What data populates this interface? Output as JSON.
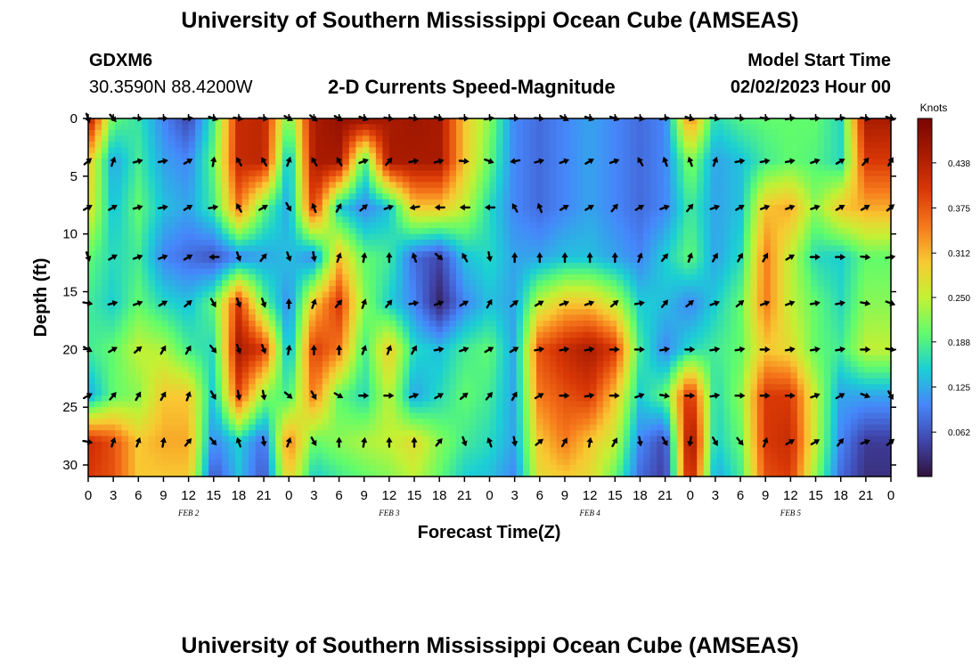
{
  "header": {
    "title": "University of Southern Mississippi Ocean Cube (AMSEAS)",
    "station_id": "GDXM6",
    "station_coords": "30.3590N  88.4200W",
    "plot_title": "2-D Currents Speed-Magnitude",
    "model_start_label": "Model Start Time",
    "model_start_value": "02/02/2023 Hour 00"
  },
  "footer": {
    "title": "University of Southern Mississippi Ocean Cube (AMSEAS)"
  },
  "chart_data": {
    "type": "heatmap",
    "title": "2-D Currents Speed-Magnitude",
    "xlabel": "Forecast Time(Z)",
    "ylabel": "Depth (ft)",
    "x_hours_range": [
      0,
      96
    ],
    "ylim": [
      0,
      31
    ],
    "x_ticks": [
      "0",
      "3",
      "6",
      "9",
      "12",
      "15",
      "18",
      "21",
      "0",
      "3",
      "6",
      "9",
      "12",
      "15",
      "18",
      "21",
      "0",
      "3",
      "6",
      "9",
      "12",
      "15",
      "18",
      "21",
      "0",
      "3",
      "6",
      "9",
      "12",
      "15",
      "18",
      "21",
      "0"
    ],
    "y_ticks": [
      0,
      5,
      10,
      15,
      20,
      25,
      30
    ],
    "y_tick_labels": [
      "0",
      "5",
      "10",
      "15",
      "20",
      "25",
      "30"
    ],
    "date_labels": [
      {
        "text": "FEB 2",
        "hour": 12
      },
      {
        "text": "FEB 3",
        "hour": 36
      },
      {
        "text": "FEB 4",
        "hour": 60
      },
      {
        "text": "FEB 5",
        "hour": 84
      }
    ],
    "colorbar": {
      "label": "Knots",
      "min": 0.0,
      "max": 0.5,
      "ticks": [
        0.062,
        0.125,
        0.188,
        0.25,
        0.312,
        0.375,
        0.438
      ],
      "tick_labels": [
        "0.062",
        "0.125",
        "0.188",
        "0.250",
        "0.312",
        "0.375",
        "0.438"
      ]
    },
    "arrow_hours": [
      0,
      3,
      6,
      9,
      12,
      15,
      18,
      21,
      24,
      27,
      30,
      33,
      36,
      39,
      42,
      45,
      48,
      51,
      54,
      57,
      60,
      63,
      66,
      69,
      72,
      75,
      78,
      81,
      84,
      87,
      90,
      93,
      96
    ],
    "arrow_depths": [
      0,
      3.7,
      7.7,
      12,
      16,
      20,
      24,
      28
    ],
    "speed_knots": {
      "hours": [
        0,
        3,
        6,
        9,
        12,
        15,
        18,
        21,
        24,
        27,
        30,
        33,
        36,
        39,
        42,
        45,
        48,
        51,
        54,
        57,
        60,
        63,
        66,
        69,
        72,
        75,
        78,
        81,
        84,
        87,
        90,
        93,
        96
      ],
      "depths": [
        0,
        3.7,
        7.7,
        12,
        16,
        20,
        24,
        28,
        31
      ],
      "rows": [
        [
          0.45,
          0.2,
          0.17,
          0.1,
          0.05,
          0.18,
          0.42,
          0.43,
          0.2,
          0.45,
          0.47,
          0.47,
          0.45,
          0.46,
          0.45,
          0.3,
          0.22,
          0.1,
          0.08,
          0.1,
          0.12,
          0.1,
          0.08,
          0.1,
          0.35,
          0.16,
          0.19,
          0.2,
          0.2,
          0.2,
          0.16,
          0.45,
          0.45
        ],
        [
          0.3,
          0.12,
          0.18,
          0.12,
          0.1,
          0.2,
          0.42,
          0.43,
          0.12,
          0.45,
          0.45,
          0.18,
          0.45,
          0.45,
          0.45,
          0.3,
          0.2,
          0.1,
          0.08,
          0.1,
          0.12,
          0.1,
          0.08,
          0.1,
          0.22,
          0.12,
          0.14,
          0.18,
          0.2,
          0.19,
          0.16,
          0.4,
          0.4
        ],
        [
          0.28,
          0.14,
          0.2,
          0.14,
          0.12,
          0.18,
          0.35,
          0.2,
          0.12,
          0.4,
          0.15,
          0.1,
          0.14,
          0.3,
          0.3,
          0.25,
          0.16,
          0.1,
          0.08,
          0.1,
          0.12,
          0.1,
          0.08,
          0.1,
          0.18,
          0.12,
          0.14,
          0.3,
          0.32,
          0.22,
          0.3,
          0.32,
          0.32
        ],
        [
          0.2,
          0.16,
          0.18,
          0.1,
          0.08,
          0.06,
          0.1,
          0.12,
          0.14,
          0.1,
          0.3,
          0.2,
          0.18,
          0.08,
          0.05,
          0.14,
          0.16,
          0.12,
          0.12,
          0.14,
          0.14,
          0.12,
          0.1,
          0.15,
          0.2,
          0.12,
          0.16,
          0.35,
          0.25,
          0.16,
          0.15,
          0.2,
          0.2
        ],
        [
          0.18,
          0.15,
          0.2,
          0.16,
          0.14,
          0.2,
          0.4,
          0.2,
          0.1,
          0.3,
          0.4,
          0.22,
          0.15,
          0.1,
          0.02,
          0.1,
          0.14,
          0.12,
          0.25,
          0.3,
          0.3,
          0.25,
          0.15,
          0.14,
          0.1,
          0.15,
          0.2,
          0.35,
          0.25,
          0.2,
          0.16,
          0.22,
          0.22
        ],
        [
          0.18,
          0.2,
          0.25,
          0.24,
          0.18,
          0.16,
          0.45,
          0.4,
          0.12,
          0.4,
          0.35,
          0.18,
          0.3,
          0.16,
          0.14,
          0.18,
          0.2,
          0.12,
          0.38,
          0.42,
          0.45,
          0.4,
          0.18,
          0.1,
          0.16,
          0.18,
          0.2,
          0.3,
          0.28,
          0.2,
          0.18,
          0.25,
          0.25
        ],
        [
          0.12,
          0.2,
          0.22,
          0.3,
          0.3,
          0.14,
          0.38,
          0.22,
          0.18,
          0.35,
          0.2,
          0.16,
          0.25,
          0.12,
          0.16,
          0.2,
          0.18,
          0.12,
          0.35,
          0.38,
          0.4,
          0.3,
          0.15,
          0.2,
          0.42,
          0.16,
          0.22,
          0.4,
          0.4,
          0.25,
          0.12,
          0.12,
          0.12
        ],
        [
          0.42,
          0.38,
          0.3,
          0.32,
          0.32,
          0.1,
          0.15,
          0.08,
          0.35,
          0.2,
          0.22,
          0.24,
          0.25,
          0.28,
          0.22,
          0.18,
          0.16,
          0.12,
          0.3,
          0.35,
          0.3,
          0.25,
          0.1,
          0.05,
          0.48,
          0.15,
          0.2,
          0.4,
          0.42,
          0.25,
          0.1,
          0.04,
          0.04
        ],
        [
          0.4,
          0.38,
          0.3,
          0.3,
          0.3,
          0.06,
          0.14,
          0.06,
          0.3,
          0.15,
          0.18,
          0.2,
          0.22,
          0.25,
          0.2,
          0.15,
          0.14,
          0.1,
          0.28,
          0.3,
          0.28,
          0.2,
          0.08,
          0.04,
          0.45,
          0.12,
          0.18,
          0.38,
          0.4,
          0.22,
          0.08,
          0.03,
          0.03
        ]
      ]
    },
    "direction_deg": {
      "rows": [
        [
          160,
          140,
          95,
          90,
          80,
          110,
          100,
          95,
          120,
          130,
          120,
          110,
          100,
          100,
          110,
          90,
          80,
          90,
          95,
          120,
          110,
          110,
          100,
          80,
          110,
          100,
          95,
          100,
          80,
          85,
          75,
          100,
          110
        ],
        [
          50,
          20,
          75,
          80,
          60,
          10,
          330,
          330,
          20,
          330,
          330,
          70,
          40,
          80,
          75,
          95,
          110,
          260,
          75,
          70,
          60,
          70,
          330,
          340,
          340,
          20,
          80,
          80,
          80,
          70,
          60,
          40,
          30
        ],
        [
          60,
          60,
          75,
          80,
          60,
          80,
          330,
          60,
          150,
          340,
          30,
          50,
          70,
          260,
          270,
          270,
          270,
          330,
          340,
          60,
          60,
          40,
          60,
          70,
          40,
          70,
          60,
          70,
          70,
          70,
          60,
          60,
          50
        ],
        [
          160,
          60,
          70,
          70,
          60,
          270,
          160,
          40,
          160,
          170,
          20,
          10,
          0,
          340,
          130,
          330,
          170,
          0,
          0,
          0,
          0,
          0,
          20,
          40,
          20,
          30,
          30,
          30,
          60,
          90,
          90,
          95,
          80
        ],
        [
          100,
          75,
          70,
          60,
          50,
          150,
          160,
          160,
          0,
          20,
          40,
          20,
          40,
          80,
          70,
          60,
          30,
          50,
          60,
          70,
          70,
          50,
          80,
          40,
          50,
          70,
          50,
          70,
          70,
          80,
          80,
          100,
          110
        ],
        [
          120,
          60,
          50,
          30,
          30,
          140,
          160,
          160,
          10,
          0,
          0,
          20,
          20,
          30,
          80,
          70,
          60,
          60,
          80,
          80,
          80,
          90,
          90,
          80,
          90,
          80,
          80,
          90,
          80,
          80,
          80,
          90,
          100
        ],
        [
          60,
          40,
          30,
          30,
          20,
          150,
          170,
          170,
          130,
          150,
          120,
          90,
          90,
          70,
          60,
          50,
          40,
          30,
          60,
          90,
          80,
          90,
          70,
          100,
          90,
          80,
          90,
          90,
          90,
          70,
          60,
          110,
          150
        ],
        [
          100,
          20,
          20,
          10,
          40,
          140,
          340,
          170,
          20,
          150,
          0,
          10,
          0,
          0,
          40,
          160,
          340,
          170,
          50,
          30,
          10,
          30,
          170,
          150,
          190,
          150,
          140,
          20,
          60,
          60,
          40,
          70,
          50
        ]
      ]
    }
  }
}
